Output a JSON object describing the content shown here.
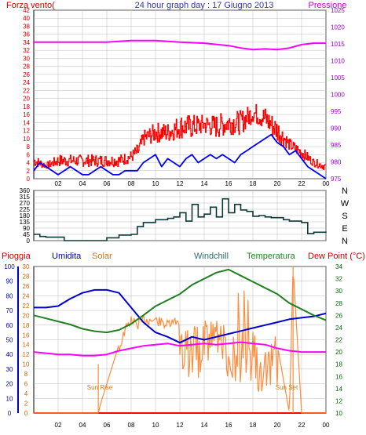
{
  "header": {
    "wind_label": "Forza vento(",
    "title": "24 hour graph day : 17 Giugno 2013",
    "pressure_label": "Pressione"
  },
  "bottom_header": {
    "rain": "Pioggia",
    "humidity": "Umidita",
    "solar": "Solar",
    "windchill": "Windchill",
    "temperature": "Temperatura",
    "dewpoint": "Dew Point (°C)"
  },
  "annotations": {
    "sunrise": "Sun Rise",
    "sunset": "Sun Set"
  },
  "colors": {
    "wind": "#ff0000",
    "wind_avg": "#0000ff",
    "pressure": "#ff00ff",
    "direction": "#0d3a36",
    "rain": "#ff0000",
    "humidity": "#0000cc",
    "solar": "#ff8c3c",
    "temperature": "#208020",
    "dewpoint": "#ff00ff",
    "grid": "#bbbbbb",
    "axis_left": "#cc0000",
    "axis_pressure": "#9900cc",
    "axis_humidity": "#000099",
    "axis_solar": "#cc6600",
    "axis_temp": "#006600"
  },
  "chart_data": [
    {
      "id": "wind_pressure",
      "type": "line",
      "x_tick_labels": [
        "02",
        "04",
        "06",
        "08",
        "10",
        "12",
        "14",
        "16",
        "18",
        "20",
        "22",
        "00"
      ],
      "x_tick_hours": [
        2,
        4,
        6,
        8,
        10,
        12,
        14,
        16,
        18,
        20,
        22,
        24
      ],
      "xlim": [
        0,
        24
      ],
      "y_left_ticks": [
        "0",
        "2",
        "4",
        "6",
        "8",
        "10",
        "12",
        "14",
        "16",
        "18",
        "20",
        "22",
        "24",
        "26",
        "28",
        "30",
        "32",
        "34",
        "36",
        "38",
        "40",
        "42"
      ],
      "ylim_left": [
        0,
        42
      ],
      "y_right_ticks": [
        "975",
        "980",
        "985",
        "990",
        "995",
        "1000",
        "1005",
        "1010",
        "1015",
        "1020",
        "1025"
      ],
      "ylim_right": [
        975,
        1025
      ],
      "series": [
        {
          "name": "Forza vento",
          "axis": "left",
          "gust_profile_hours": [
            0,
            1,
            2,
            3,
            4,
            5,
            6,
            7,
            8,
            8.6,
            9,
            10,
            11,
            12,
            13,
            14,
            15,
            16,
            17,
            18,
            19,
            20,
            21,
            22,
            23,
            24
          ],
          "gust_profile_base": [
            3,
            2.5,
            3,
            3,
            3,
            3,
            3,
            3,
            4,
            5,
            8,
            9,
            9,
            10,
            10,
            11,
            10,
            11,
            11,
            14,
            12,
            9,
            7,
            5,
            3,
            2
          ],
          "gust_profile_peak": [
            6,
            4,
            6,
            6,
            6,
            6,
            6,
            6,
            7,
            9,
            12,
            14,
            14,
            16,
            16,
            16,
            16,
            17,
            17,
            19,
            18,
            15,
            10,
            8,
            5,
            4
          ]
        },
        {
          "name": "wind average",
          "axis": "left",
          "x": [
            0,
            0.5,
            1,
            1.5,
            2,
            2.5,
            3,
            3.5,
            4,
            4.5,
            5,
            5.5,
            6,
            6.5,
            7,
            7.5,
            8,
            8.5,
            9,
            9.5,
            10,
            10.5,
            11,
            11.5,
            12,
            12.5,
            13,
            13.5,
            14,
            14.5,
            15,
            15.5,
            16,
            16.5,
            17,
            17.5,
            18,
            18.5,
            19,
            19.5,
            20,
            20.5,
            21,
            21.5,
            22,
            22.5,
            23,
            23.5,
            24
          ],
          "y": [
            2,
            4,
            3,
            2,
            1,
            2,
            3,
            2,
            1,
            1,
            2,
            3,
            2,
            1,
            1,
            2,
            2,
            2,
            4,
            5,
            6,
            3,
            5,
            4,
            3,
            5,
            6,
            4,
            5,
            6,
            5,
            6,
            5,
            4,
            6,
            7,
            8,
            9,
            10,
            11,
            9,
            8,
            6,
            7,
            5,
            3,
            2,
            1,
            0
          ]
        },
        {
          "name": "Pressione",
          "axis": "right",
          "x": [
            0,
            2,
            4,
            6,
            8,
            9,
            10,
            12,
            14,
            16,
            17,
            18,
            19,
            20,
            21,
            22,
            23,
            24
          ],
          "y": [
            1015.5,
            1015.5,
            1015.5,
            1015.5,
            1016,
            1016,
            1016,
            1015.5,
            1015.2,
            1014.5,
            1013.8,
            1013.3,
            1013.5,
            1013.3,
            1013.8,
            1014.8,
            1015.2,
            1015.2
          ]
        }
      ]
    },
    {
      "id": "wind_direction",
      "type": "line",
      "xlim": [
        0,
        24
      ],
      "y_left_ticks": [
        "0",
        "45",
        "90",
        "135",
        "180",
        "225",
        "270",
        "315",
        "360"
      ],
      "ylim": [
        0,
        360
      ],
      "direction_labels": [
        "N",
        "W",
        "S",
        "E",
        "N"
      ],
      "series": [
        {
          "name": "direction",
          "x": [
            0,
            0.5,
            1,
            2,
            2.5,
            3,
            4,
            5,
            6,
            7,
            8,
            8.5,
            9,
            10,
            11,
            11.5,
            12,
            12.5,
            13,
            13.5,
            14,
            14.5,
            15,
            15.5,
            16,
            16.5,
            17,
            17.5,
            18,
            18.5,
            19,
            19.5,
            20,
            20.5,
            21,
            22,
            22.5,
            23,
            24
          ],
          "y": [
            45,
            30,
            25,
            25,
            0,
            0,
            0,
            0,
            20,
            40,
            45,
            100,
            130,
            150,
            160,
            170,
            200,
            140,
            260,
            170,
            190,
            240,
            170,
            300,
            200,
            260,
            220,
            210,
            175,
            180,
            170,
            165,
            165,
            150,
            140,
            130,
            50,
            60,
            65
          ]
        }
      ]
    },
    {
      "id": "rain_humidity_solar_temp",
      "type": "line",
      "xlim": [
        0,
        24
      ],
      "y_rain_ticks": [
        "0",
        "10",
        "20",
        "30",
        "40",
        "50",
        "60",
        "70",
        "80",
        "90",
        "100"
      ],
      "ylim_rain": [
        0,
        100
      ],
      "y_solar_ticks": [
        "0",
        "2",
        "4",
        "6",
        "8",
        "10",
        "12",
        "14",
        "16",
        "18",
        "20",
        "22",
        "24",
        "26",
        "28",
        "30"
      ],
      "ylim_solar": [
        0,
        30
      ],
      "y_temp_ticks": [
        "10",
        "12",
        "14",
        "16",
        "18",
        "20",
        "22",
        "24",
        "26",
        "28",
        "30",
        "32",
        "34"
      ],
      "ylim_temp": [
        10,
        34
      ],
      "series": [
        {
          "name": "Pioggia",
          "axis": "rain",
          "x": [
            0,
            24
          ],
          "y": [
            0,
            0
          ]
        },
        {
          "name": "Umidita",
          "axis": "rain",
          "x": [
            0,
            1,
            2,
            3,
            4,
            5,
            6,
            7,
            8,
            9,
            10,
            11,
            12,
            13,
            14,
            15,
            16,
            17,
            18,
            19,
            20,
            21,
            22,
            23,
            24
          ],
          "y": [
            72,
            72,
            73,
            78,
            82,
            84,
            84,
            82,
            72,
            62,
            55,
            52,
            48,
            52,
            50,
            52,
            54,
            56,
            58,
            60,
            62,
            64,
            65,
            66,
            68
          ]
        },
        {
          "name": "Solar",
          "axis": "solar",
          "sun_rise_hour": 5.3,
          "sun_set_hour": 21.3,
          "x": [
            0,
            5.3,
            5.5,
            6,
            6.5,
            7,
            7.5,
            8,
            8.5,
            9,
            10,
            11,
            12,
            13,
            14,
            15,
            16,
            17,
            18,
            19,
            20,
            21,
            21.3,
            22,
            24
          ],
          "y": [
            0,
            0,
            2,
            6,
            10,
            14,
            18,
            20,
            19,
            20,
            20,
            19,
            20,
            18,
            20,
            20,
            19,
            18,
            17,
            15,
            14,
            0,
            30,
            0,
            0
          ]
        },
        {
          "name": "Temperatura",
          "axis": "temp",
          "x": [
            0,
            1,
            2,
            3,
            4,
            5,
            6,
            7,
            8,
            9,
            10,
            11,
            12,
            13,
            14,
            15,
            16,
            17,
            18,
            19,
            20,
            21,
            22,
            23,
            24
          ],
          "y": [
            26,
            25.5,
            25,
            24.5,
            23.8,
            23.4,
            23.2,
            23.6,
            24.6,
            26,
            27.5,
            28.5,
            29.5,
            31,
            32,
            33,
            33.5,
            32.5,
            31.5,
            30.5,
            29.5,
            28,
            27,
            26,
            25.2
          ]
        },
        {
          "name": "Dew Point",
          "axis": "temp",
          "x": [
            0,
            1,
            2,
            3,
            4,
            5,
            6,
            7,
            8,
            9,
            10,
            11,
            12,
            13,
            14,
            15,
            16,
            17,
            18,
            19,
            20,
            21,
            22,
            23,
            24
          ],
          "y": [
            20,
            19.8,
            19.6,
            19.6,
            19.4,
            19.4,
            19.6,
            20.2,
            20.6,
            21,
            21.2,
            21.4,
            21,
            21.2,
            21.4,
            21.2,
            21.4,
            21.6,
            21.4,
            21.2,
            20.6,
            20.2,
            20,
            20,
            20
          ]
        }
      ]
    }
  ]
}
